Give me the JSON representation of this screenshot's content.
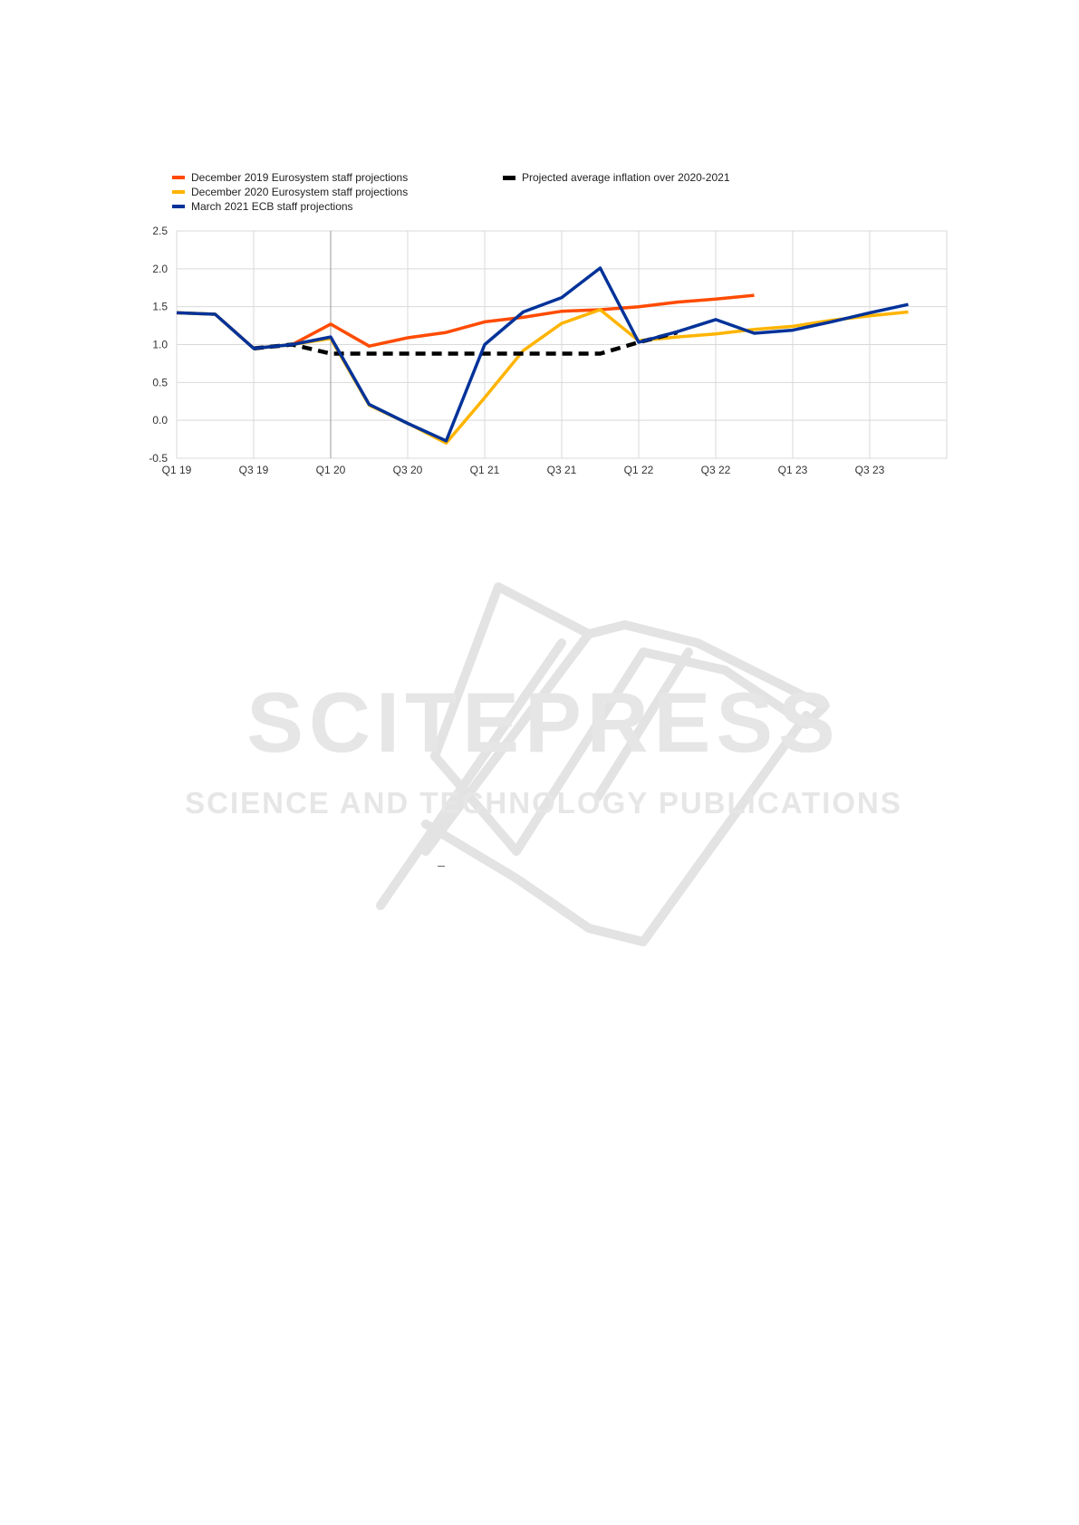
{
  "chart_data": {
    "type": "line",
    "title": "",
    "xlabel": "",
    "ylabel": "",
    "ylim": [
      -0.5,
      2.5
    ],
    "yticks": [
      "2.5",
      "2.0",
      "1.5",
      "1.0",
      "0.5",
      "0.0",
      "-0.5"
    ],
    "x_categories": [
      "Q1 19",
      "Q2 19",
      "Q3 19",
      "Q4 19",
      "Q1 20",
      "Q2 20",
      "Q3 20",
      "Q4 20",
      "Q1 21",
      "Q2 21",
      "Q3 21",
      "Q4 21",
      "Q1 22",
      "Q2 22",
      "Q3 22",
      "Q4 22",
      "Q1 23",
      "Q2 23",
      "Q3 23",
      "Q4 23"
    ],
    "x_tick_labels": [
      "Q1 19",
      "Q3 19",
      "Q1 20",
      "Q3 20",
      "Q1 21",
      "Q3 21",
      "Q1 22",
      "Q3 22",
      "Q1 23",
      "Q3 23"
    ],
    "grid": true,
    "legend_position": "top",
    "series": [
      {
        "name": "December 2019 Eurosystem staff projections",
        "color": "#ff4b00",
        "style": "solid",
        "values": [
          1.42,
          1.4,
          0.95,
          1.0,
          1.27,
          0.98,
          1.09,
          1.16,
          1.3,
          1.36,
          1.44,
          1.46,
          1.5,
          1.56,
          1.6,
          1.65,
          null,
          null,
          null,
          null
        ]
      },
      {
        "name": "December 2020 Eurosystem staff projections",
        "color": "#ffb400",
        "style": "solid",
        "values": [
          1.42,
          1.4,
          0.95,
          1.0,
          1.08,
          0.2,
          -0.04,
          -0.3,
          0.3,
          0.92,
          1.28,
          1.46,
          1.05,
          1.1,
          1.14,
          1.2,
          1.24,
          1.32,
          1.38,
          1.43
        ]
      },
      {
        "name": "March 2021 ECB staff projections",
        "color": "#003299",
        "style": "solid",
        "values": [
          1.42,
          1.4,
          0.95,
          1.0,
          1.1,
          0.21,
          -0.04,
          -0.27,
          1.0,
          1.43,
          1.62,
          2.01,
          1.03,
          1.17,
          1.33,
          1.15,
          1.19,
          1.3,
          1.42,
          1.53
        ]
      },
      {
        "name": "Projected average inflation over 2020-2021",
        "color": "#000000",
        "style": "dashed",
        "values": [
          null,
          null,
          0.95,
          1.0,
          0.88,
          0.88,
          0.88,
          0.88,
          0.88,
          0.88,
          0.88,
          0.88,
          1.03,
          1.16,
          null,
          null,
          null,
          null,
          null,
          null
        ]
      }
    ]
  },
  "watermark": {
    "brand": "SCITEPRESS",
    "tagline": "SCIENCE AND TECHNOLOGY PUBLICATIONS"
  }
}
